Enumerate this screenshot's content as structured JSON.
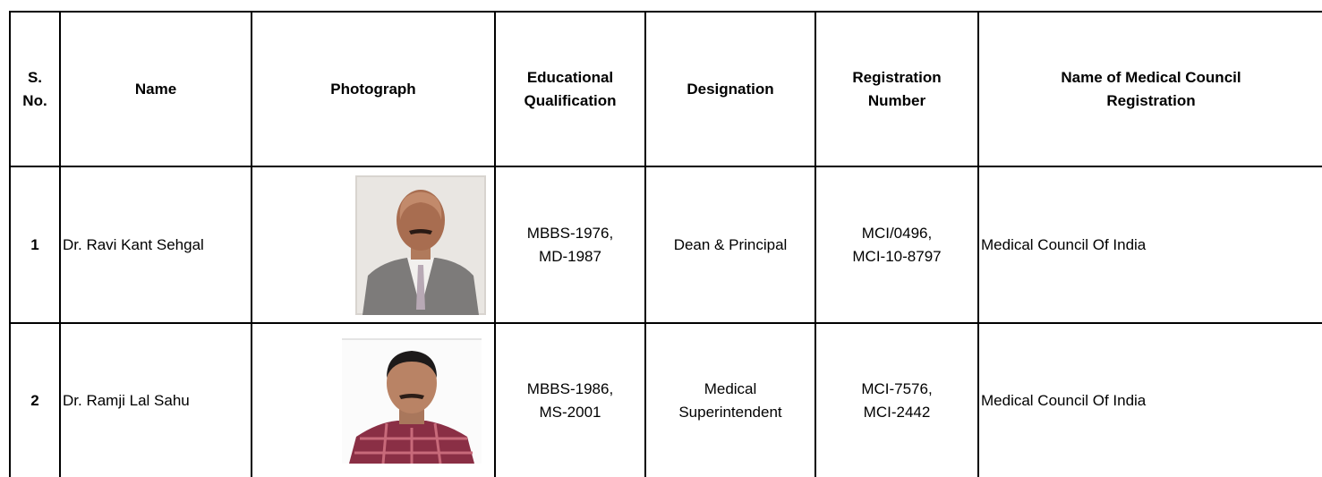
{
  "table": {
    "header": [
      [
        "S.",
        "No."
      ],
      [
        "Name"
      ],
      [
        "Photograph"
      ],
      [
        "Educational",
        "Qualification"
      ],
      [
        "Designation"
      ],
      [
        "Registration",
        "Number"
      ],
      [
        "Name of Medical  Council",
        "Registration"
      ]
    ],
    "rows": [
      {
        "s_no": "1",
        "name": "Dr. Ravi Kant Sehgal",
        "qualification": [
          "MBBS-1976,",
          "MD-1987"
        ],
        "designation": [
          "Dean & Principal"
        ],
        "registration": [
          "MCI/0496,",
          "MCI-10-8797"
        ],
        "council": "Medical Council Of India"
      },
      {
        "s_no": "2",
        "name": "Dr. Ramji Lal Sahu",
        "qualification": [
          "MBBS-1986,",
          "MS-2001"
        ],
        "designation": [
          "Medical",
          "Superintendent"
        ],
        "registration": [
          "MCI-7576,",
          "MCI-2442"
        ],
        "council": "Medical Council Of India"
      }
    ]
  }
}
